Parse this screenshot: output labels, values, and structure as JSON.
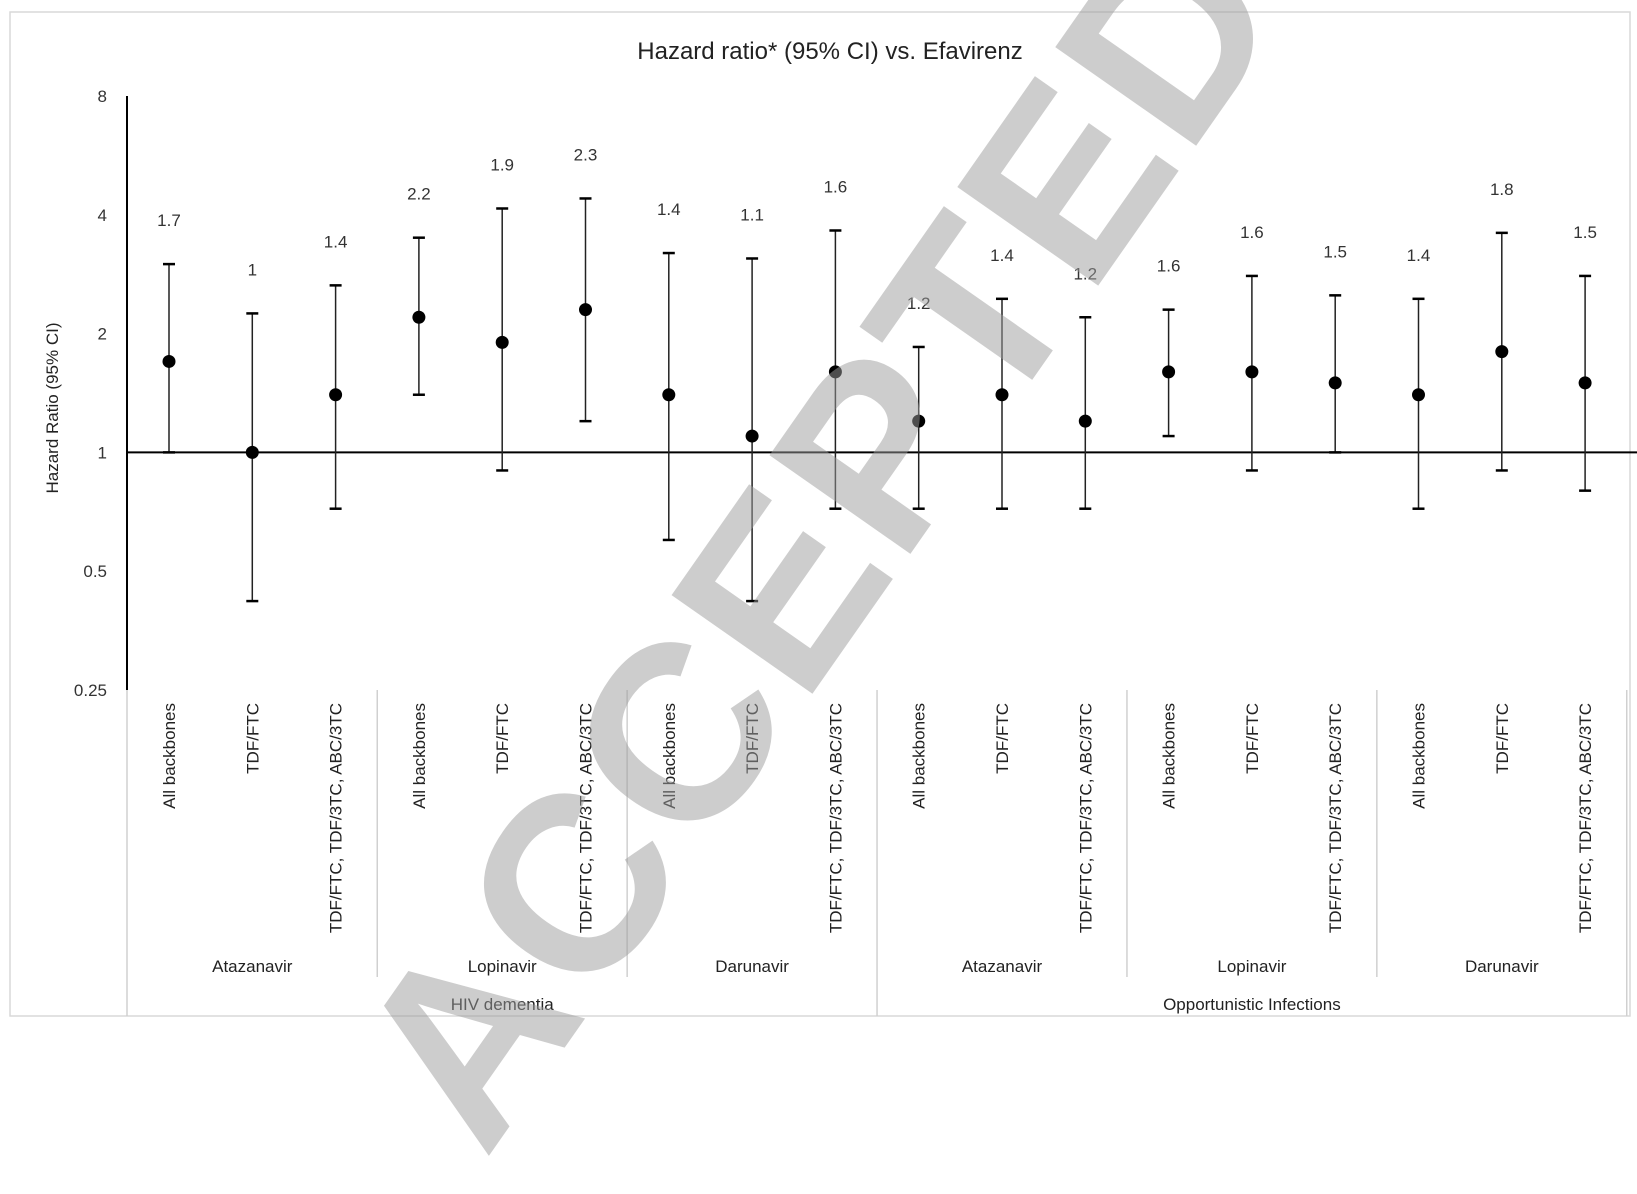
{
  "watermark": "ACCEPTED",
  "chart_data": {
    "type": "scatter",
    "title": "Hazard ratio* (95% CI) vs. Efavirenz",
    "ylabel": "Hazard Ratio (95% CI)",
    "xlabel": "",
    "yscale": "log2",
    "ylim": [
      0.25,
      8
    ],
    "yticks": [
      0.25,
      0.5,
      1,
      2,
      4,
      8
    ],
    "reference_line": 1,
    "grid": false,
    "groups": [
      {
        "outcome": "HIV dementia",
        "drugs": [
          {
            "drug": "Atazanavir",
            "points": [
              {
                "backbone": "All backbones",
                "hr": 1.7,
                "lower": 1.0,
                "upper": 3.0,
                "label": "1.7"
              },
              {
                "backbone": "TDF/FTC",
                "hr": 1.0,
                "lower": 0.42,
                "upper": 2.25,
                "label": "1"
              },
              {
                "backbone": "TDF/FTC, TDF/3TC, ABC/3TC",
                "hr": 1.4,
                "lower": 0.72,
                "upper": 2.65,
                "label": "1.4"
              }
            ]
          },
          {
            "drug": "Lopinavir",
            "points": [
              {
                "backbone": "All backbones",
                "hr": 2.2,
                "lower": 1.4,
                "upper": 3.5,
                "label": "2.2"
              },
              {
                "backbone": "TDF/FTC",
                "hr": 1.9,
                "lower": 0.9,
                "upper": 4.15,
                "label": "1.9"
              },
              {
                "backbone": "TDF/FTC, TDF/3TC, ABC/3TC",
                "hr": 2.3,
                "lower": 1.2,
                "upper": 4.4,
                "label": "2.3"
              }
            ]
          },
          {
            "drug": "Darunavir",
            "points": [
              {
                "backbone": "All backbones",
                "hr": 1.4,
                "lower": 0.6,
                "upper": 3.2,
                "label": "1.4"
              },
              {
                "backbone": "TDF/FTC",
                "hr": 1.1,
                "lower": 0.42,
                "upper": 3.1,
                "label": "1.1"
              },
              {
                "backbone": "TDF/FTC, TDF/3TC, ABC/3TC",
                "hr": 1.6,
                "lower": 0.72,
                "upper": 3.65,
                "label": "1.6"
              }
            ]
          }
        ]
      },
      {
        "outcome": "Opportunistic Infections",
        "drugs": [
          {
            "drug": "Atazanavir",
            "points": [
              {
                "backbone": "All backbones",
                "hr": 1.2,
                "lower": 0.72,
                "upper": 1.85,
                "label": "1.2"
              },
              {
                "backbone": "TDF/FTC",
                "hr": 1.4,
                "lower": 0.72,
                "upper": 2.45,
                "label": "1.4"
              },
              {
                "backbone": "TDF/FTC, TDF/3TC, ABC/3TC",
                "hr": 1.2,
                "lower": 0.72,
                "upper": 2.2,
                "label": "1.2"
              }
            ]
          },
          {
            "drug": "Lopinavir",
            "points": [
              {
                "backbone": "All backbones",
                "hr": 1.6,
                "lower": 1.1,
                "upper": 2.3,
                "label": "1.6"
              },
              {
                "backbone": "TDF/FTC",
                "hr": 1.6,
                "lower": 0.9,
                "upper": 2.8,
                "label": "1.6"
              },
              {
                "backbone": "TDF/FTC, TDF/3TC, ABC/3TC",
                "hr": 1.5,
                "lower": 1.0,
                "upper": 2.5,
                "label": "1.5"
              }
            ]
          },
          {
            "drug": "Darunavir",
            "points": [
              {
                "backbone": "All backbones",
                "hr": 1.4,
                "lower": 0.72,
                "upper": 2.45,
                "label": "1.4"
              },
              {
                "backbone": "TDF/FTC",
                "hr": 1.8,
                "lower": 0.9,
                "upper": 3.6,
                "label": "1.8"
              },
              {
                "backbone": "TDF/FTC, TDF/3TC, ABC/3TC",
                "hr": 1.5,
                "lower": 0.8,
                "upper": 2.8,
                "label": "1.5"
              }
            ]
          }
        ]
      }
    ]
  }
}
